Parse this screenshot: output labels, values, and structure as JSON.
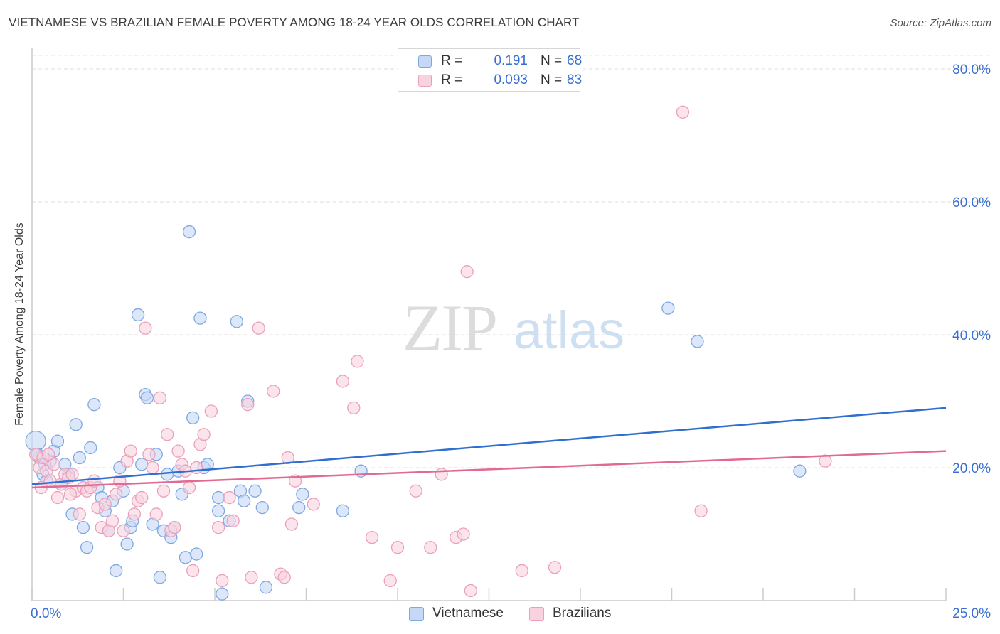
{
  "chart_data": {
    "type": "scatter",
    "title": "VIETNAMESE VS BRAZILIAN FEMALE POVERTY AMONG 18-24 YEAR OLDS CORRELATION CHART",
    "source": "Source: ZipAtlas.com",
    "xlabel": "",
    "ylabel": "Female Poverty Among 18-24 Year Olds",
    "xlim": [
      0,
      25
    ],
    "ylim": [
      0,
      80
    ],
    "x_tick_labels": {
      "left": "0.0%",
      "right": "25.0%"
    },
    "y_tick_labels": [
      "20.0%",
      "40.0%",
      "60.0%",
      "80.0%"
    ],
    "y_ticks": [
      20,
      40,
      60,
      80
    ],
    "watermark": {
      "zip": "ZIP",
      "atlas": "atlas"
    },
    "legend": {
      "rows": [
        {
          "r_label": "R =",
          "r_value": "0.191",
          "n_label": "N =",
          "n_value": "68"
        },
        {
          "r_label": "R =",
          "r_value": "0.093",
          "n_label": "N =",
          "n_value": "83"
        }
      ]
    },
    "series": [
      {
        "name": "Vietnamese",
        "color": "#7fa8e0",
        "fill": "#c5d8f5",
        "line_color": "#2f6fd0",
        "trend": {
          "x0": 0,
          "y0": 17.5,
          "x1": 25,
          "y1": 29
        },
        "points": [
          [
            0.1,
            24.0
          ],
          [
            0.2,
            21.5
          ],
          [
            0.3,
            19.0
          ],
          [
            0.4,
            18.0
          ],
          [
            0.5,
            21.0
          ],
          [
            0.6,
            22.5
          ],
          [
            0.7,
            24.0
          ],
          [
            0.8,
            17.5
          ],
          [
            0.9,
            20.5
          ],
          [
            1.0,
            19.0
          ],
          [
            1.1,
            13.0
          ],
          [
            1.2,
            26.5
          ],
          [
            1.3,
            21.5
          ],
          [
            1.4,
            11.0
          ],
          [
            1.5,
            8.0
          ],
          [
            1.6,
            23.0
          ],
          [
            1.7,
            29.5
          ],
          [
            1.8,
            17.0
          ],
          [
            1.9,
            15.5
          ],
          [
            2.0,
            13.5
          ],
          [
            2.1,
            10.5
          ],
          [
            2.2,
            15.0
          ],
          [
            2.3,
            4.5
          ],
          [
            2.4,
            20.0
          ],
          [
            2.5,
            16.5
          ],
          [
            2.6,
            8.5
          ],
          [
            2.7,
            11.0
          ],
          [
            2.75,
            12.0
          ],
          [
            2.9,
            43.0
          ],
          [
            3.0,
            20.5
          ],
          [
            3.1,
            31.0
          ],
          [
            3.15,
            30.5
          ],
          [
            3.3,
            11.5
          ],
          [
            3.4,
            22.0
          ],
          [
            3.5,
            3.5
          ],
          [
            3.6,
            10.5
          ],
          [
            3.7,
            19.0
          ],
          [
            3.8,
            9.5
          ],
          [
            3.9,
            11.0
          ],
          [
            4.0,
            19.5
          ],
          [
            4.1,
            16.0
          ],
          [
            4.2,
            6.5
          ],
          [
            4.3,
            55.5
          ],
          [
            4.4,
            27.5
          ],
          [
            4.5,
            7.0
          ],
          [
            4.6,
            42.5
          ],
          [
            4.7,
            20.0
          ],
          [
            4.8,
            20.5
          ],
          [
            5.1,
            15.5
          ],
          [
            5.1,
            13.5
          ],
          [
            5.2,
            1.0
          ],
          [
            5.4,
            12.0
          ],
          [
            5.6,
            42.0
          ],
          [
            5.7,
            16.5
          ],
          [
            5.8,
            15.0
          ],
          [
            5.9,
            30.0
          ],
          [
            6.1,
            16.5
          ],
          [
            6.3,
            14.0
          ],
          [
            6.4,
            2.0
          ],
          [
            7.3,
            14.0
          ],
          [
            7.4,
            16.0
          ],
          [
            8.5,
            13.5
          ],
          [
            9.0,
            19.5
          ],
          [
            17.4,
            44.0
          ],
          [
            18.2,
            39.0
          ],
          [
            21.0,
            19.5
          ],
          [
            0.15,
            22.0
          ],
          [
            0.35,
            20.5
          ]
        ]
      },
      {
        "name": "Brazilians",
        "color": "#eba0b9",
        "fill": "#f8d2df",
        "line_color": "#e06a93",
        "trend": {
          "x0": 0,
          "y0": 17.0,
          "x1": 25,
          "y1": 22.5
        },
        "points": [
          [
            0.1,
            22.0
          ],
          [
            0.2,
            20.0
          ],
          [
            0.3,
            21.5
          ],
          [
            0.4,
            19.5
          ],
          [
            0.5,
            18.0
          ],
          [
            0.6,
            20.5
          ],
          [
            0.7,
            15.5
          ],
          [
            0.8,
            17.5
          ],
          [
            0.9,
            19.0
          ],
          [
            1.0,
            18.5
          ],
          [
            1.1,
            19.0
          ],
          [
            1.2,
            16.5
          ],
          [
            1.3,
            13.0
          ],
          [
            1.4,
            17.0
          ],
          [
            1.5,
            16.5
          ],
          [
            1.6,
            17.0
          ],
          [
            1.7,
            18.0
          ],
          [
            1.8,
            14.0
          ],
          [
            1.9,
            11.0
          ],
          [
            2.0,
            14.5
          ],
          [
            2.1,
            10.5
          ],
          [
            2.2,
            12.0
          ],
          [
            2.3,
            16.0
          ],
          [
            2.4,
            18.0
          ],
          [
            2.5,
            10.5
          ],
          [
            2.6,
            21.0
          ],
          [
            2.7,
            22.5
          ],
          [
            2.8,
            13.0
          ],
          [
            2.9,
            15.0
          ],
          [
            3.0,
            15.5
          ],
          [
            3.1,
            41.0
          ],
          [
            3.2,
            22.0
          ],
          [
            3.3,
            20.0
          ],
          [
            3.4,
            13.0
          ],
          [
            3.5,
            30.5
          ],
          [
            3.6,
            16.5
          ],
          [
            3.7,
            25.0
          ],
          [
            3.8,
            10.5
          ],
          [
            3.9,
            11.0
          ],
          [
            4.0,
            22.5
          ],
          [
            4.1,
            20.5
          ],
          [
            4.2,
            19.5
          ],
          [
            4.3,
            17.0
          ],
          [
            4.4,
            4.5
          ],
          [
            4.5,
            20.0
          ],
          [
            4.6,
            23.5
          ],
          [
            4.7,
            25.0
          ],
          [
            4.9,
            28.5
          ],
          [
            5.1,
            11.0
          ],
          [
            5.2,
            3.0
          ],
          [
            5.4,
            15.5
          ],
          [
            5.5,
            12.0
          ],
          [
            5.9,
            29.5
          ],
          [
            6.0,
            3.5
          ],
          [
            6.2,
            41.0
          ],
          [
            6.6,
            31.5
          ],
          [
            6.8,
            4.0
          ],
          [
            6.9,
            3.5
          ],
          [
            7.0,
            21.5
          ],
          [
            7.1,
            11.5
          ],
          [
            7.2,
            18.0
          ],
          [
            7.7,
            14.5
          ],
          [
            8.5,
            33.0
          ],
          [
            8.8,
            29.0
          ],
          [
            8.9,
            36.0
          ],
          [
            9.3,
            9.5
          ],
          [
            9.8,
            3.0
          ],
          [
            10.0,
            8.0
          ],
          [
            10.5,
            16.5
          ],
          [
            10.9,
            8.0
          ],
          [
            11.2,
            19.0
          ],
          [
            11.6,
            9.5
          ],
          [
            11.8,
            10.0
          ],
          [
            11.9,
            49.5
          ],
          [
            12.0,
            1.5
          ],
          [
            13.4,
            4.5
          ],
          [
            14.3,
            5.0
          ],
          [
            17.8,
            73.5
          ],
          [
            18.3,
            13.5
          ],
          [
            21.7,
            21.0
          ],
          [
            0.25,
            17.0
          ],
          [
            0.45,
            22.0
          ],
          [
            1.05,
            16.0
          ]
        ]
      }
    ]
  }
}
